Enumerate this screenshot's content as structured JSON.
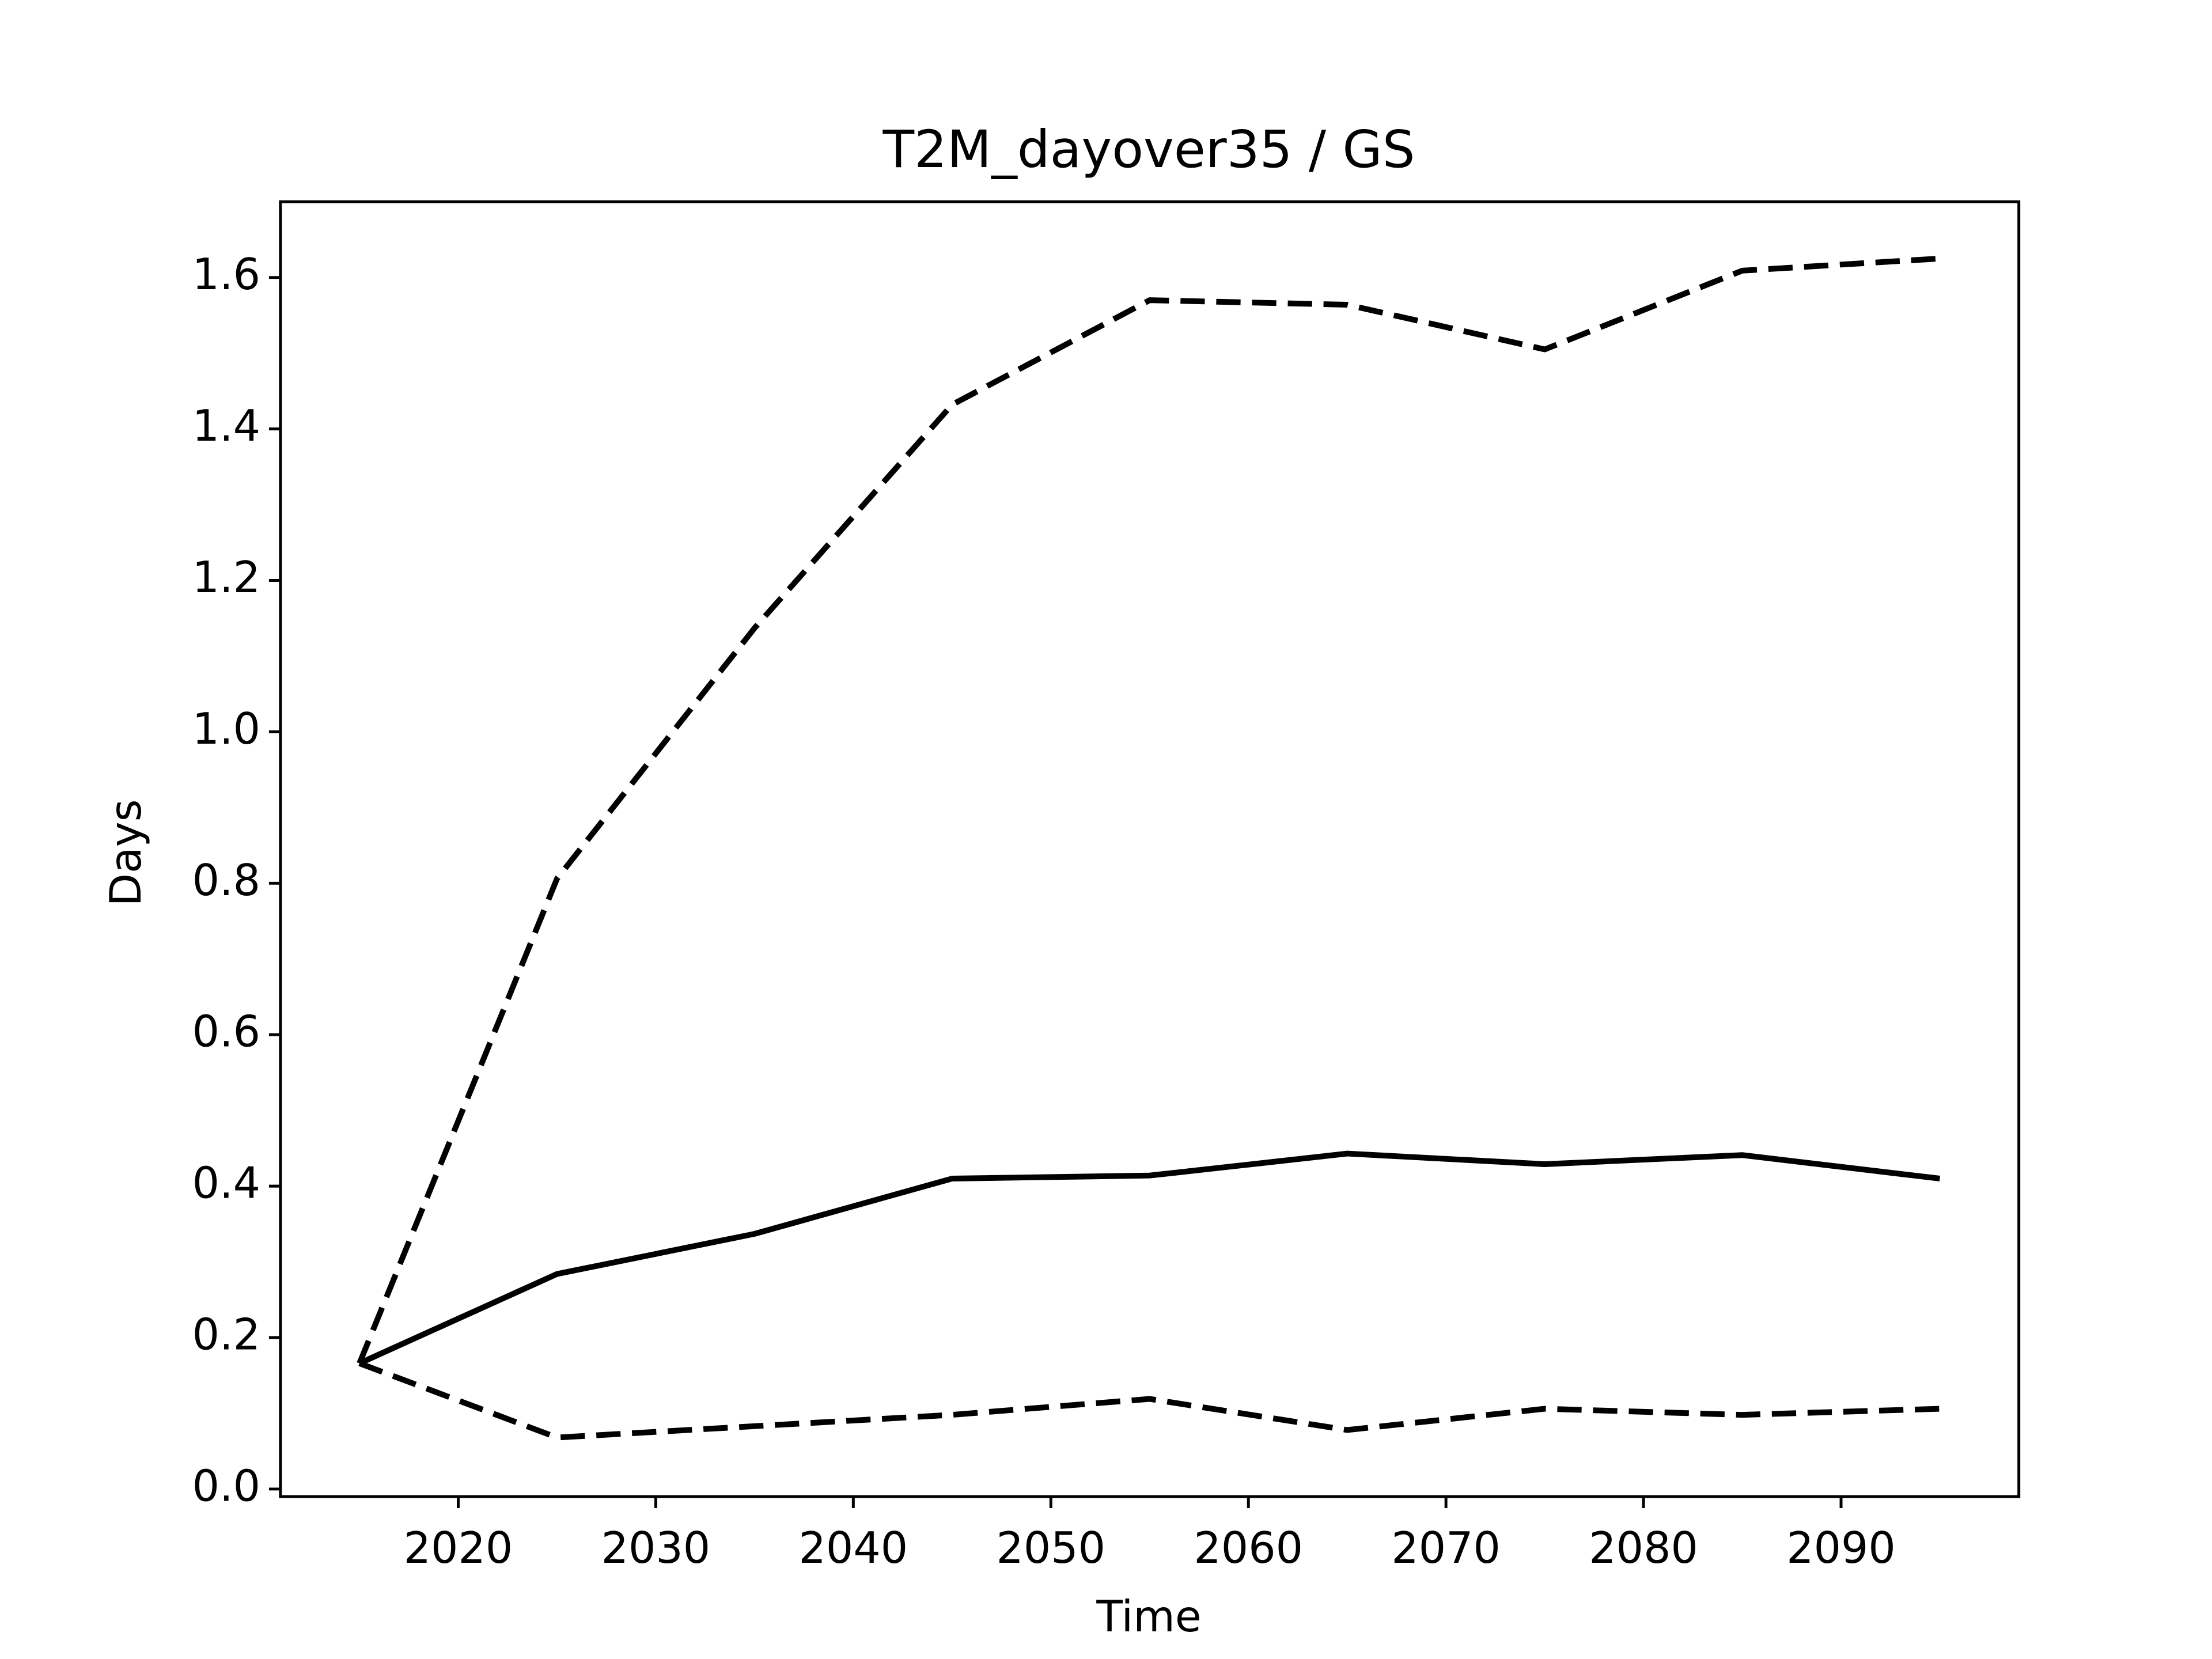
{
  "chart_data": {
    "type": "line",
    "title": "T2M_dayover35 / GS",
    "xlabel": "Time",
    "ylabel": "Days",
    "x": [
      2015,
      2025,
      2035,
      2045,
      2055,
      2065,
      2075,
      2085,
      2095
    ],
    "series": [
      {
        "color": "#000000",
        "linestyle": "solid",
        "values": [
          0.166,
          0.284,
          0.337,
          0.41,
          0.414,
          0.443,
          0.429,
          0.441,
          0.41
        ]
      },
      {
        "color": "#000000",
        "linestyle": "dashed",
        "values": [
          0.166,
          0.806,
          1.137,
          1.432,
          1.57,
          1.564,
          1.505,
          1.609,
          1.625
        ]
      },
      {
        "color": "#000000",
        "linestyle": "dashed",
        "values": [
          0.166,
          0.068,
          0.083,
          0.098,
          0.119,
          0.078,
          0.106,
          0.098,
          0.106
        ]
      }
    ],
    "xlim": [
      2011,
      2099
    ],
    "ylim": [
      -0.01,
      1.7
    ],
    "xticks": [
      2020,
      2030,
      2040,
      2050,
      2060,
      2070,
      2080,
      2090
    ],
    "yticks": [
      {
        "value": 0,
        "label": "0.0"
      },
      0.2,
      0.4,
      0.6,
      0.8,
      {
        "value": 1,
        "label": "1.0"
      },
      1.2,
      1.4,
      1.6
    ],
    "grid": false
  }
}
